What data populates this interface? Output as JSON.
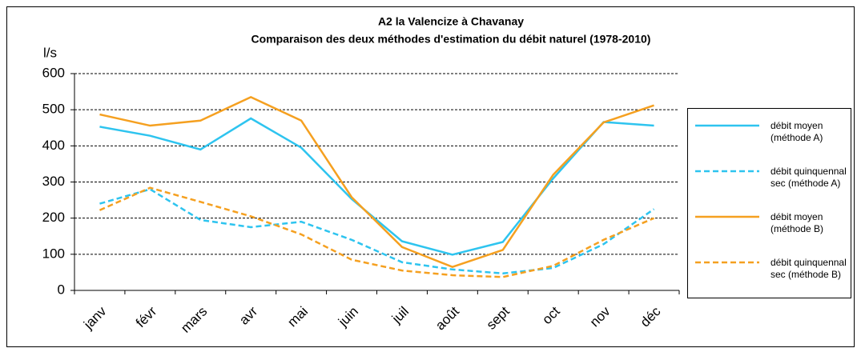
{
  "chart_data": {
    "type": "line",
    "title": "A2  la Valencize à Chavanay",
    "subtitle": "Comparaison des deux méthodes d'estimation du débit naturel (1978-2010)",
    "y_label": "l/s",
    "categories": [
      "janv",
      "févr",
      "mars",
      "avr",
      "mai",
      "juin",
      "juil",
      "août",
      "sept",
      "oct",
      "nov",
      "déc"
    ],
    "series": [
      {
        "name": "débit moyen (méthode A)",
        "color": "#2ec4ef",
        "dashed": false,
        "values": [
          453,
          428,
          390,
          476,
          395,
          253,
          136,
          99,
          134,
          310,
          466,
          456
        ]
      },
      {
        "name": "débit quinquennal sec (méthode A)",
        "color": "#2ec4ef",
        "dashed": true,
        "values": [
          240,
          280,
          195,
          175,
          190,
          140,
          78,
          58,
          47,
          62,
          128,
          225
        ]
      },
      {
        "name": "débit moyen (méthode B)",
        "color": "#f5a020",
        "dashed": false,
        "values": [
          487,
          456,
          470,
          535,
          470,
          258,
          120,
          65,
          112,
          320,
          465,
          512
        ]
      },
      {
        "name": "débit quinquennal sec (méthode B)",
        "color": "#f5a020",
        "dashed": true,
        "values": [
          222,
          284,
          245,
          205,
          155,
          85,
          55,
          42,
          37,
          68,
          140,
          200
        ]
      }
    ],
    "ylim": [
      0,
      600
    ],
    "yticks": [
      0,
      100,
      200,
      300,
      400,
      500,
      600
    ],
    "grid": true,
    "legend": "right"
  }
}
